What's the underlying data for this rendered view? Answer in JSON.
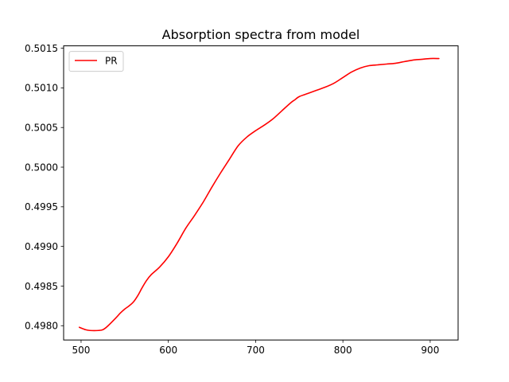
{
  "chart_data": {
    "type": "line",
    "title": "Absorption spectra from model",
    "xlabel": "",
    "ylabel": "",
    "xlim": [
      480,
      932
    ],
    "ylim": [
      0.49782,
      0.50153
    ],
    "xticks": [
      500,
      600,
      700,
      800,
      900
    ],
    "xtick_labels": [
      "500",
      "600",
      "700",
      "800",
      "900"
    ],
    "yticks": [
      0.498,
      0.4985,
      0.499,
      0.4995,
      0.5,
      0.5005,
      0.501,
      0.5015
    ],
    "ytick_labels": [
      "0.4980",
      "0.4985",
      "0.4990",
      "0.4995",
      "0.5000",
      "0.5005",
      "0.5010",
      "0.5015"
    ],
    "grid": false,
    "legend": {
      "placement": "top-left"
    },
    "series": [
      {
        "name": "PR",
        "color": "#ff0000",
        "x": [
          498,
          505,
          510,
          520,
          525,
          530,
          540,
          545,
          550,
          555,
          560,
          565,
          570,
          575,
          580,
          590,
          600,
          610,
          620,
          630,
          640,
          650,
          660,
          670,
          680,
          690,
          700,
          710,
          720,
          730,
          740,
          745,
          750,
          760,
          770,
          780,
          790,
          800,
          810,
          820,
          830,
          840,
          850,
          860,
          870,
          880,
          890,
          900,
          910
        ],
        "y": [
          0.49798,
          0.49795,
          0.49794,
          0.49794,
          0.49795,
          0.49799,
          0.4981,
          0.49816,
          0.49821,
          0.49825,
          0.4983,
          0.49838,
          0.49848,
          0.49857,
          0.49864,
          0.49874,
          0.49887,
          0.49904,
          0.49923,
          0.49939,
          0.49956,
          0.49975,
          0.49993,
          0.5001,
          0.50027,
          0.50038,
          0.50046,
          0.50053,
          0.50061,
          0.50071,
          0.50081,
          0.50085,
          0.50089,
          0.50093,
          0.50097,
          0.50101,
          0.50106,
          0.50113,
          0.5012,
          0.50125,
          0.50128,
          0.50129,
          0.5013,
          0.50131,
          0.50133,
          0.50135,
          0.50136,
          0.50137,
          0.50137
        ]
      }
    ]
  }
}
